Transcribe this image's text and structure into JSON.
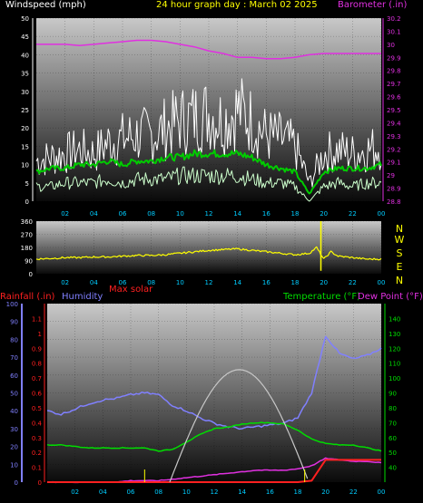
{
  "header": {
    "left_label": "Windspeed (mph)",
    "title": "24 hour graph day : March 02 2025",
    "right_label": "Barometer (.in)"
  },
  "bottom_header": {
    "rainfall_label": "Rainfall (.in)",
    "humidity_label": "Humidity",
    "max_solar_label": "Max solar",
    "temperature_label": "Temperature (°F)",
    "dewpoint_label": "Dew Point (°F)"
  },
  "colors": {
    "windspeed": "#ffffff",
    "wind_avg": "#00cc00",
    "wind_min": "#ccffcc",
    "barometer": "#e030e0",
    "direction": "#ffff00",
    "rainfall": "#ff2020",
    "humidity": "#8080ff",
    "max_solar": "#c8c8c8",
    "temperature": "#00dd00",
    "dewpoint": "#e030e0",
    "header_yellow": "#ffff00"
  },
  "chart_data": [
    {
      "type": "line",
      "x_ticks": [
        "02",
        "04",
        "06",
        "08",
        "10",
        "12",
        "14",
        "16",
        "18",
        "20",
        "22",
        "00"
      ],
      "y_left": {
        "label": "Windspeed (mph)",
        "range": [
          0,
          50
        ],
        "ticks": [
          0,
          5,
          10,
          15,
          20,
          25,
          30,
          35,
          40,
          45,
          50
        ]
      },
      "y_right": {
        "label": "Barometer (.in)",
        "range": [
          28.8,
          30.2
        ],
        "ticks": [
          "28.8",
          "28.9",
          "29",
          "29.1",
          "29.2",
          "29.3",
          "29.4",
          "29.5",
          "29.6",
          "29.7",
          "29.8",
          "29.9",
          "30",
          "30.1",
          "30.2"
        ]
      },
      "x": [
        0,
        1,
        2,
        3,
        4,
        5,
        6,
        7,
        8,
        9,
        10,
        11,
        12,
        13,
        14,
        15,
        16,
        17,
        18,
        19,
        20,
        21,
        22,
        23,
        24
      ],
      "series": [
        {
          "key": "windspeed",
          "axis": "left",
          "values": [
            11,
            12,
            13,
            14,
            13,
            16,
            17,
            18,
            18,
            20,
            22,
            23,
            24,
            22,
            25,
            22,
            18,
            17,
            15,
            5,
            13,
            14,
            13,
            14,
            15
          ]
        },
        {
          "key": "wind_avg",
          "axis": "left",
          "values": [
            8,
            9,
            9,
            10,
            10,
            11,
            10,
            11,
            11,
            12,
            12,
            13,
            13,
            13,
            13,
            12,
            10,
            9,
            8,
            2,
            8,
            9,
            9,
            9,
            10
          ]
        },
        {
          "key": "wind_min",
          "axis": "left",
          "values": [
            4,
            4,
            5,
            5,
            5,
            6,
            5,
            6,
            6,
            6,
            7,
            7,
            7,
            7,
            7,
            6,
            5,
            5,
            4,
            0,
            4,
            5,
            4,
            5,
            5
          ]
        },
        {
          "key": "barometer",
          "axis": "right",
          "values": [
            30.0,
            30.0,
            30.0,
            29.99,
            30.0,
            30.01,
            30.02,
            30.03,
            30.03,
            30.02,
            30.0,
            29.98,
            29.95,
            29.93,
            29.9,
            29.9,
            29.89,
            29.89,
            29.9,
            29.92,
            29.93,
            29.93,
            29.93,
            29.93,
            29.93
          ]
        }
      ]
    },
    {
      "type": "line",
      "x_ticks": [
        "02",
        "04",
        "06",
        "08",
        "10",
        "12",
        "14",
        "16",
        "18",
        "20",
        "22",
        "00"
      ],
      "y_left": {
        "range": [
          0,
          360
        ],
        "ticks": [
          0,
          90,
          180,
          270,
          360
        ]
      },
      "y_right_labels": [
        "N",
        "W",
        "S",
        "E",
        "N"
      ],
      "x": [
        0,
        1,
        2,
        3,
        4,
        5,
        6,
        7,
        8,
        9,
        10,
        11,
        12,
        13,
        14,
        15,
        16,
        17,
        18,
        19,
        19.5,
        20,
        20.5,
        21,
        22,
        23,
        24
      ],
      "series": [
        {
          "key": "direction",
          "values": [
            100,
            105,
            110,
            110,
            115,
            115,
            120,
            125,
            125,
            130,
            140,
            150,
            160,
            165,
            170,
            160,
            150,
            140,
            130,
            140,
            180,
            100,
            150,
            120,
            110,
            100,
            100
          ]
        }
      ]
    },
    {
      "type": "line",
      "x_ticks": [
        "02",
        "04",
        "06",
        "08",
        "10",
        "12",
        "14",
        "16",
        "18",
        "20",
        "22",
        "00"
      ],
      "y_humidity": {
        "range": [
          0,
          100
        ],
        "ticks": [
          0,
          10,
          20,
          30,
          40,
          50,
          60,
          70,
          80,
          90,
          100
        ]
      },
      "y_rainfall": {
        "range": [
          0,
          1.2
        ],
        "ticks": [
          "0",
          "0.1",
          "0.2",
          "0.3",
          "0.4",
          "0.5",
          "0.6",
          "0.7",
          "0.8",
          "0.9",
          "1",
          "1.1"
        ]
      },
      "y_temperature": {
        "range": [
          30,
          150
        ],
        "ticks": [
          40,
          50,
          60,
          70,
          80,
          90,
          100,
          110,
          120,
          130,
          140
        ]
      },
      "x": [
        0,
        1,
        2,
        3,
        4,
        5,
        6,
        7,
        8,
        9,
        10,
        11,
        12,
        13,
        14,
        15,
        16,
        17,
        18,
        19,
        20,
        21,
        22,
        23,
        24
      ],
      "series": [
        {
          "key": "humidity",
          "axis": "humidity",
          "values": [
            40,
            38,
            41,
            44,
            46,
            47,
            49,
            50,
            49,
            43,
            40,
            36,
            33,
            31,
            30,
            31,
            32,
            33,
            36,
            50,
            82,
            72,
            69,
            71,
            75
          ]
        },
        {
          "key": "temperature",
          "axis": "temperature",
          "values": [
            55,
            55,
            54,
            53,
            53,
            53,
            53,
            53,
            51,
            52,
            57,
            62,
            66,
            67,
            69,
            70,
            70,
            69,
            65,
            59,
            56,
            55,
            55,
            53,
            51
          ]
        },
        {
          "key": "dewpoint",
          "axis": "temperature",
          "values": [
            30,
            30,
            30,
            30,
            30,
            30,
            31,
            31,
            31,
            32,
            33,
            34,
            35,
            36,
            37,
            38,
            38,
            38,
            39,
            41,
            46,
            45,
            44,
            44,
            43
          ]
        },
        {
          "key": "rainfall",
          "axis": "rainfall",
          "values": [
            0,
            0,
            0,
            0,
            0,
            0,
            0,
            0,
            0,
            0,
            0,
            0,
            0,
            0,
            0,
            0,
            0,
            0,
            0,
            0.01,
            0.15,
            0.15,
            0.15,
            0.15,
            0.15
          ]
        },
        {
          "key": "max_solar",
          "axis": "humidity",
          "values": [
            0,
            0,
            0,
            0,
            0,
            0,
            0,
            0,
            0,
            8,
            28,
            45,
            57,
            63,
            60,
            48,
            30,
            10,
            0,
            0,
            0,
            0,
            0,
            0,
            0
          ]
        }
      ]
    }
  ]
}
